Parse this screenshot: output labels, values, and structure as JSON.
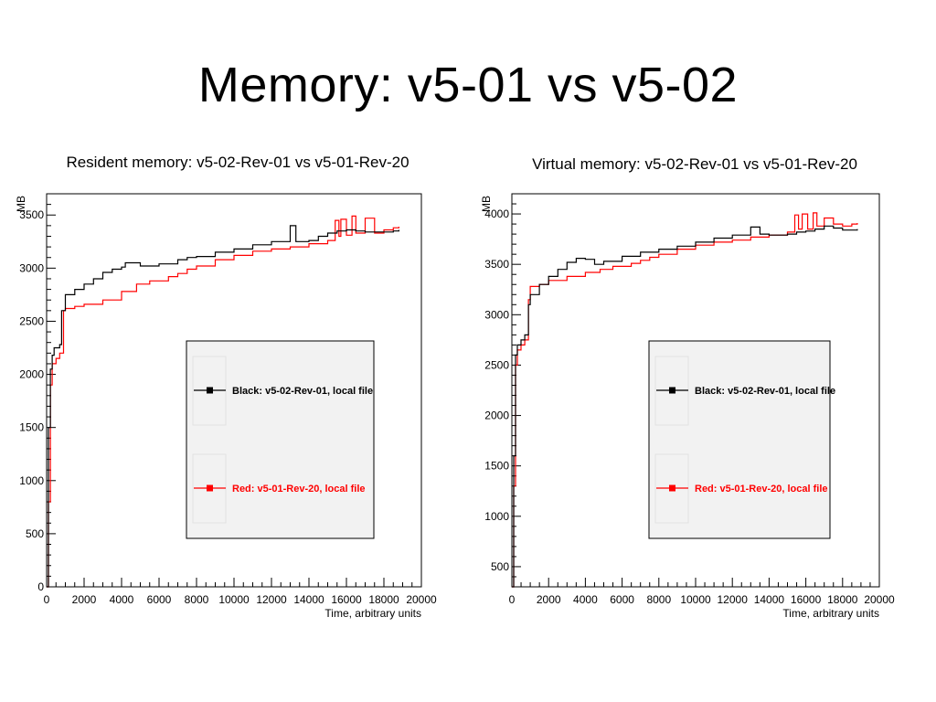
{
  "slide": {
    "title": "Memory: v5-01 vs v5-02"
  },
  "chart_data": [
    {
      "type": "line",
      "title": "Resident memory: v5-02-Rev-01 vs v5-01-Rev-20",
      "xlabel": "Time, arbitrary units",
      "ylabel": "MB",
      "xlim": [
        0,
        20000
      ],
      "ylim": [
        0,
        3700
      ],
      "xticks": [
        0,
        2000,
        4000,
        6000,
        8000,
        10000,
        12000,
        14000,
        16000,
        18000,
        20000
      ],
      "yticks": [
        0,
        500,
        1000,
        1500,
        2000,
        2500,
        3000,
        3500
      ],
      "legend_position": "bottom-right",
      "grid": false,
      "series": [
        {
          "name": "Black: v5-02-Rev-01, local file",
          "color": "#000000",
          "x": [
            0,
            100,
            200,
            300,
            400,
            700,
            800,
            1000,
            1500,
            2000,
            2500,
            3000,
            3500,
            4000,
            4200,
            5000,
            6000,
            7000,
            7500,
            8000,
            9000,
            10000,
            11000,
            12000,
            13000,
            13300,
            14000,
            14500,
            15000,
            15500,
            16000,
            16500,
            17000,
            17500,
            18000,
            18500,
            18800
          ],
          "y": [
            0,
            1500,
            2050,
            2180,
            2250,
            2280,
            2600,
            2750,
            2800,
            2850,
            2900,
            2960,
            2990,
            3010,
            3050,
            3020,
            3040,
            3080,
            3100,
            3110,
            3150,
            3180,
            3220,
            3250,
            3400,
            3250,
            3260,
            3300,
            3330,
            3350,
            3360,
            3350,
            3340,
            3340,
            3340,
            3350,
            3360
          ]
        },
        {
          "name": "Red: v5-01-Rev-20, local file",
          "color": "#ff0000",
          "x": [
            0,
            100,
            200,
            300,
            500,
            700,
            900,
            1000,
            1500,
            2000,
            3000,
            4000,
            4800,
            5500,
            6500,
            7000,
            7500,
            8000,
            9000,
            10000,
            11000,
            12000,
            13000,
            14000,
            15000,
            15400,
            15600,
            15700,
            16000,
            16300,
            16500,
            17000,
            17500,
            18000,
            18500,
            18800
          ],
          "y": [
            0,
            800,
            1900,
            2100,
            2150,
            2200,
            2600,
            2620,
            2640,
            2660,
            2700,
            2780,
            2850,
            2880,
            2920,
            2950,
            2990,
            3020,
            3080,
            3120,
            3160,
            3180,
            3200,
            3230,
            3260,
            3450,
            3300,
            3460,
            3310,
            3490,
            3330,
            3470,
            3330,
            3360,
            3380,
            3390
          ]
        }
      ]
    },
    {
      "type": "line",
      "title": "Virtual memory: v5-02-Rev-01 vs v5-01-Rev-20",
      "xlabel": "Time, arbitrary units",
      "ylabel": "MB",
      "xlim": [
        0,
        20000
      ],
      "ylim": [
        300,
        4200
      ],
      "xticks": [
        0,
        2000,
        4000,
        6000,
        8000,
        10000,
        12000,
        14000,
        16000,
        18000,
        20000
      ],
      "yticks": [
        500,
        1000,
        1500,
        2000,
        2500,
        3000,
        3500,
        4000
      ],
      "legend_position": "bottom-right",
      "grid": false,
      "series": [
        {
          "name": "Black: v5-02-Rev-01, local file",
          "color": "#000000",
          "x": [
            0,
            100,
            200,
            300,
            500,
            700,
            900,
            1000,
            1500,
            2000,
            2500,
            3000,
            3500,
            4000,
            4500,
            5000,
            6000,
            7000,
            8000,
            9000,
            10000,
            11000,
            12000,
            13000,
            13500,
            14000,
            15000,
            15500,
            16000,
            16500,
            17000,
            17500,
            18000,
            18500,
            18800
          ],
          "y": [
            300,
            1600,
            2600,
            2700,
            2750,
            2800,
            3100,
            3200,
            3300,
            3380,
            3450,
            3520,
            3560,
            3550,
            3500,
            3530,
            3580,
            3620,
            3650,
            3680,
            3720,
            3760,
            3790,
            3870,
            3800,
            3790,
            3800,
            3820,
            3830,
            3850,
            3880,
            3860,
            3840,
            3840,
            3850
          ]
        },
        {
          "name": "Red: v5-01-Rev-20, local file",
          "color": "#ff0000",
          "x": [
            0,
            100,
            200,
            300,
            500,
            700,
            900,
            1000,
            1500,
            2000,
            3000,
            4000,
            4800,
            5500,
            6500,
            7000,
            7500,
            8000,
            9000,
            10000,
            11000,
            12000,
            13000,
            14000,
            15000,
            15400,
            15600,
            15800,
            16100,
            16400,
            16600,
            17000,
            17500,
            18000,
            18500,
            18800
          ],
          "y": [
            300,
            1300,
            2500,
            2650,
            2700,
            2750,
            3150,
            3280,
            3300,
            3340,
            3380,
            3420,
            3450,
            3480,
            3510,
            3540,
            3570,
            3600,
            3650,
            3690,
            3720,
            3740,
            3770,
            3790,
            3820,
            3990,
            3850,
            4000,
            3850,
            4010,
            3880,
            3960,
            3900,
            3880,
            3900,
            3910
          ]
        }
      ]
    }
  ]
}
